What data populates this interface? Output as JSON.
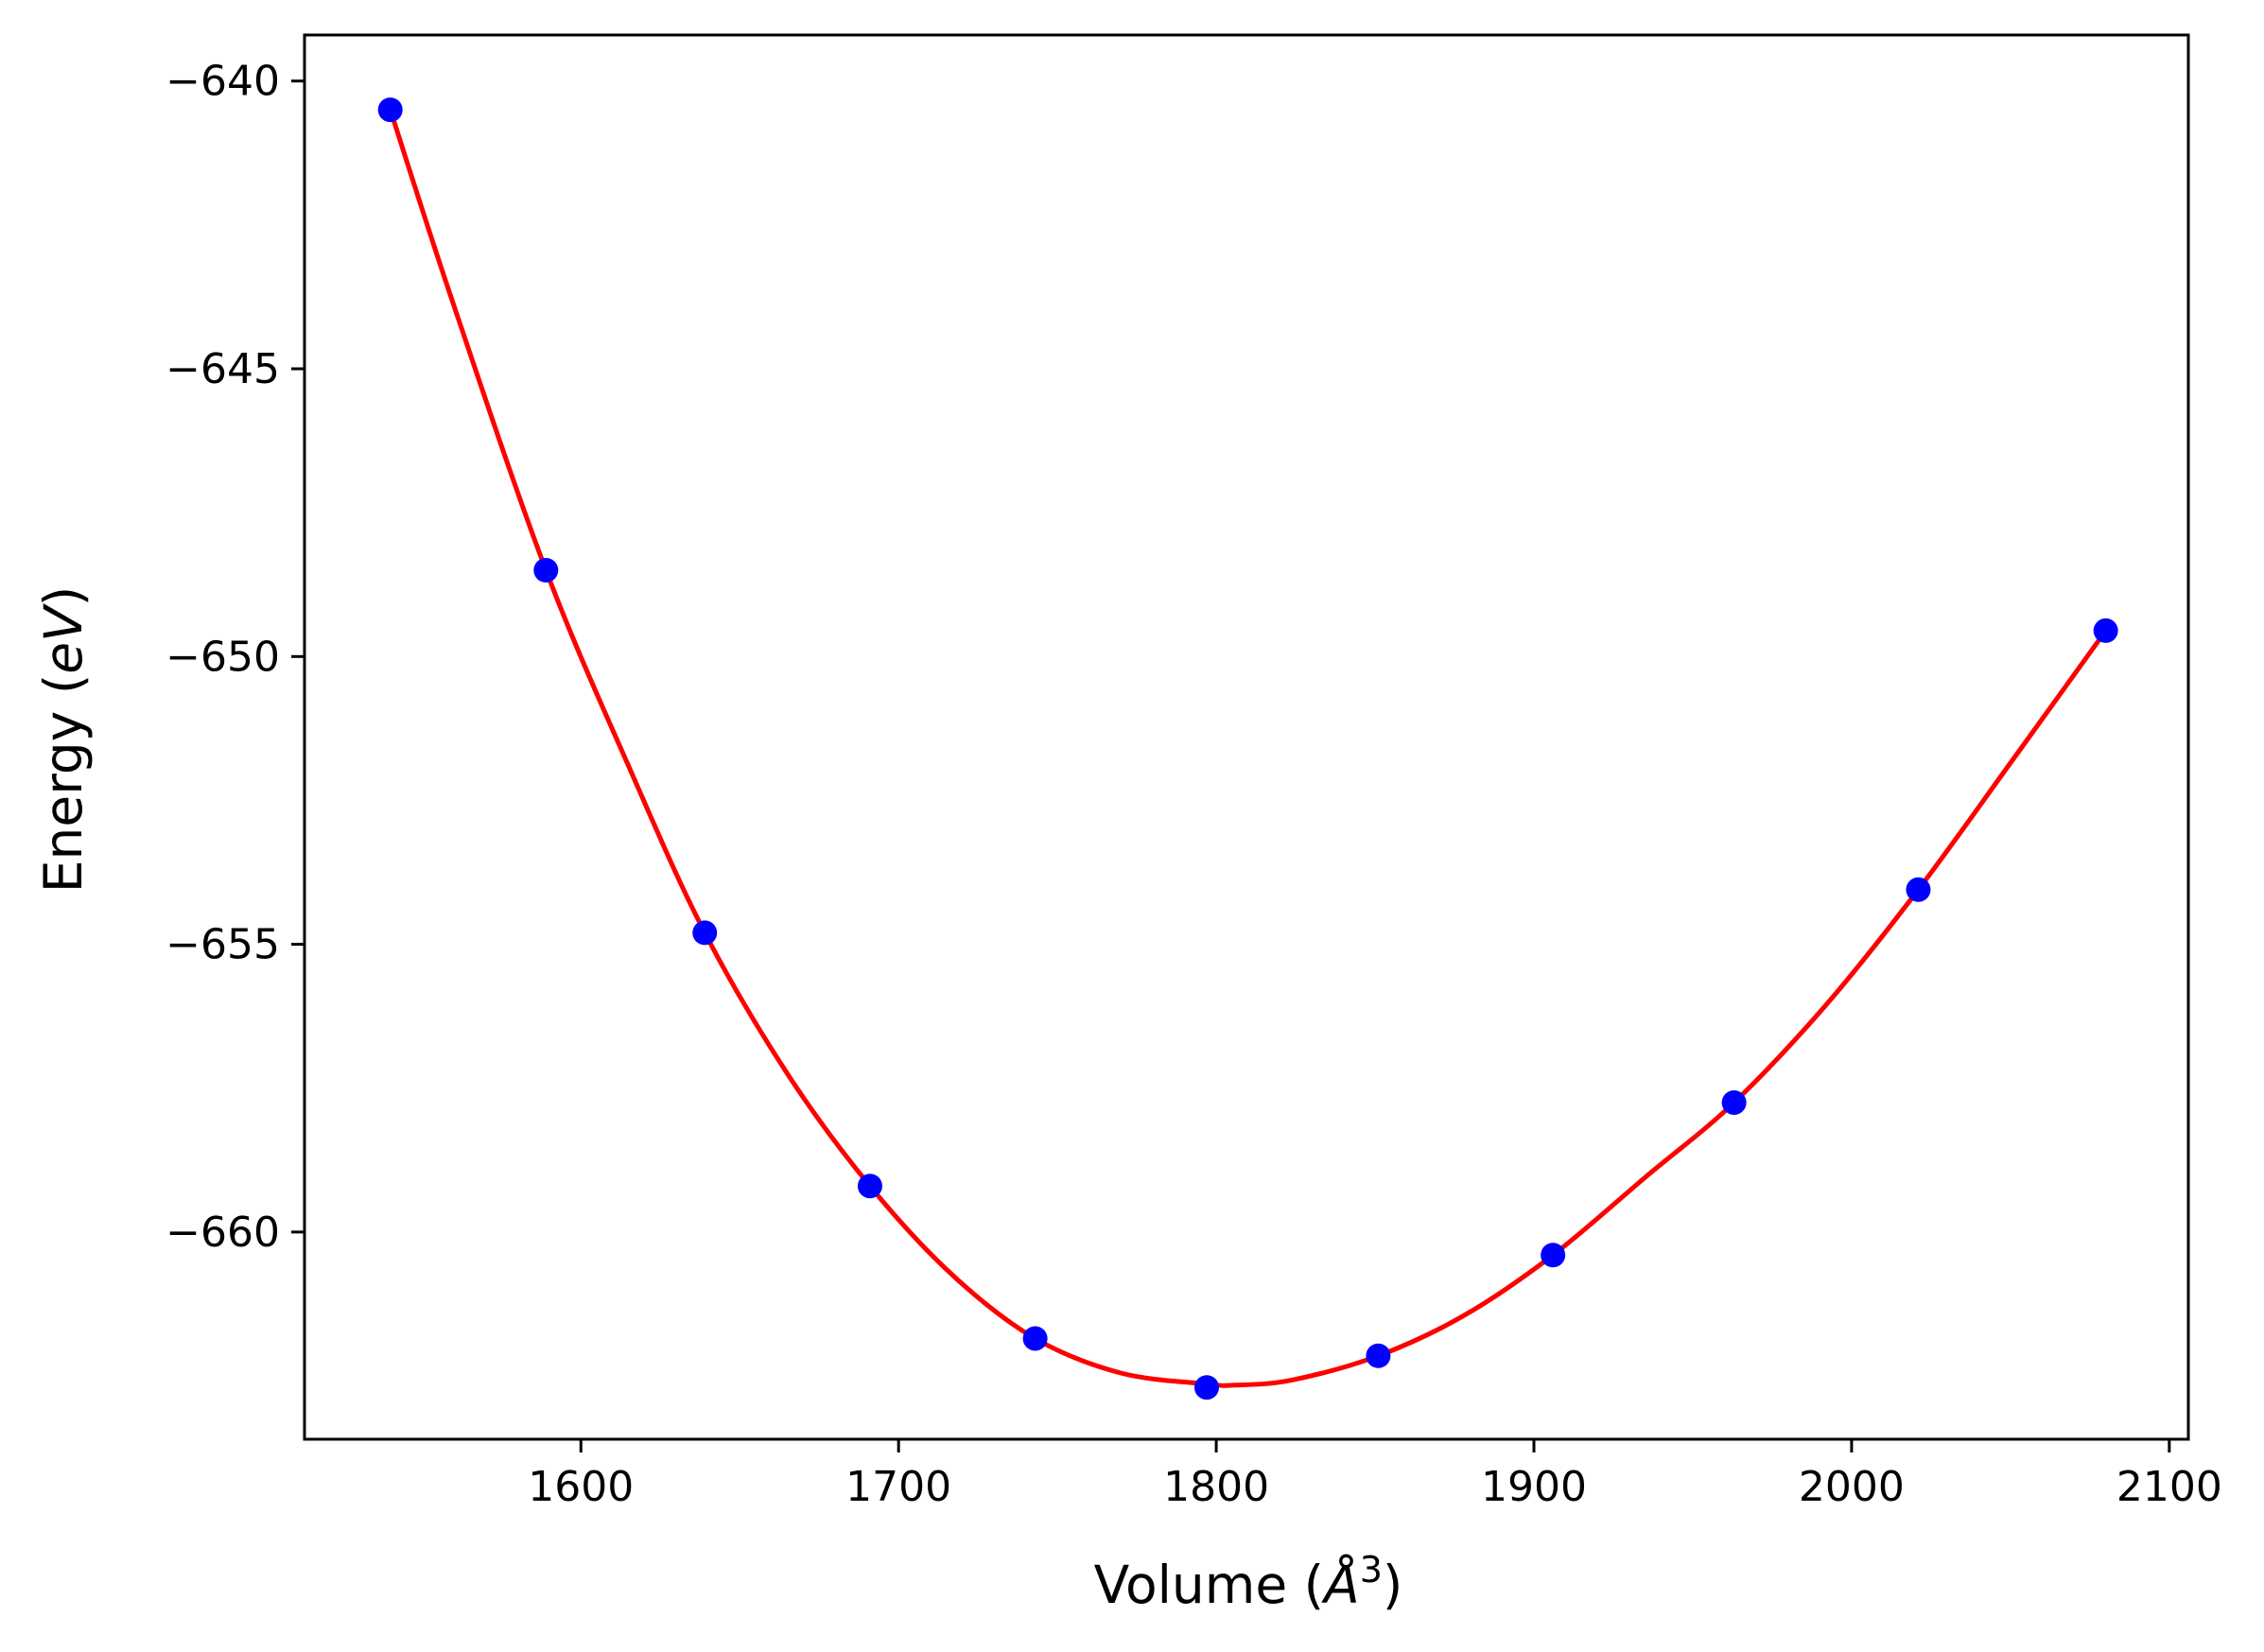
{
  "chart_data": {
    "type": "scatter",
    "title": "",
    "xlabel": {
      "prefix": "Volume (",
      "symbol": "Å",
      "exponent": "3",
      "suffix": ")"
    },
    "ylabel": {
      "prefix": "Energy (",
      "unit": "eV",
      "suffix": ")"
    },
    "xlim": [
      1513,
      2106
    ],
    "ylim": [
      -663.6,
      -639.2
    ],
    "xticks": [
      1600,
      1700,
      1800,
      1900,
      2000,
      2100
    ],
    "xtick_labels": [
      "1600",
      "1700",
      "1800",
      "1900",
      "2000",
      "2100"
    ],
    "yticks": [
      -640,
      -645,
      -650,
      -655,
      -660
    ],
    "ytick_labels": [
      "−640",
      "−645",
      "−650",
      "−655",
      "−660"
    ],
    "grid": false,
    "colors": {
      "points": "#0000ff",
      "fit": "#ff0000"
    },
    "series": [
      {
        "kind": "points",
        "x": [
          1540,
          1589,
          1639,
          1691,
          1743,
          1797,
          1851,
          1906,
          1963,
          2021,
          2080
        ],
        "y": [
          -640.5,
          -648.5,
          -654.8,
          -659.2,
          -661.85,
          -662.7,
          -662.15,
          -660.4,
          -657.75,
          -654.05,
          -649.55
        ]
      },
      {
        "kind": "fit-curve",
        "x": [
          1540,
          1560,
          1589,
          1615,
          1639,
          1665,
          1691,
          1717,
          1743,
          1770,
          1797,
          1806,
          1824,
          1851,
          1878,
          1906,
          1935,
          1963,
          1992,
          2021,
          2050,
          2080
        ],
        "y": [
          -640.5,
          -643.9,
          -648.5,
          -651.9,
          -654.8,
          -657.25,
          -659.2,
          -660.75,
          -661.85,
          -662.45,
          -662.64,
          -662.66,
          -662.57,
          -662.15,
          -661.45,
          -660.4,
          -659.05,
          -657.75,
          -656.05,
          -654.05,
          -651.85,
          -649.55
        ]
      }
    ]
  }
}
